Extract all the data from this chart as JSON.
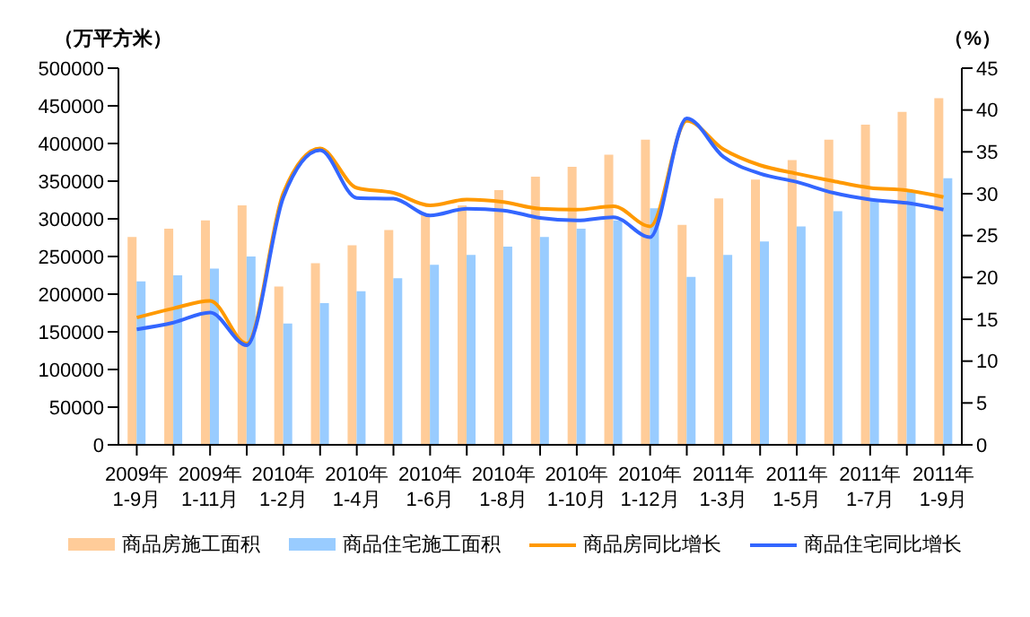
{
  "chart_data": {
    "type": "bar",
    "ylabel": "（万平方米）",
    "y2label": "（%）",
    "categories": [
      "2009年\n1-9月",
      null,
      "2009年\n1-11月",
      null,
      "2010年\n1-2月",
      null,
      "2010年\n1-4月",
      null,
      "2010年\n1-6月",
      null,
      "2010年\n1-8月",
      null,
      "2010年\n1-10月",
      null,
      "2010年\n1-12月",
      null,
      "2011年\n1-3月",
      null,
      "2011年\n1-5月",
      null,
      "2011年\n1-7月",
      null,
      "2011年\n1-9月"
    ],
    "series": [
      {
        "name": "商品房施工面积",
        "color": "#ffcc99",
        "values": [
          276000,
          287000,
          298000,
          318000,
          210000,
          241000,
          265000,
          285000,
          305000,
          318000,
          338000,
          356000,
          369000,
          385000,
          405000,
          292000,
          327000,
          352000,
          378000,
          405000,
          425000,
          442000,
          460000
        ]
      },
      {
        "name": "商品住宅施工面积",
        "color": "#99ccff",
        "values": [
          217000,
          225000,
          234000,
          250000,
          161000,
          188000,
          204000,
          221000,
          239000,
          252000,
          263000,
          276000,
          287000,
          298000,
          314000,
          223000,
          252000,
          270000,
          290000,
          310000,
          325000,
          336000,
          354000
        ]
      },
      {
        "name": "商品房同比增长",
        "type": "line",
        "axis": "y2",
        "color": "#ff9900",
        "values": [
          15.2,
          16.3,
          17.2,
          12.1,
          30.1,
          35.4,
          30.7,
          30.1,
          28.6,
          29.3,
          29.0,
          28.2,
          28.1,
          28.5,
          26.1,
          38.7,
          35.3,
          33.4,
          32.4,
          31.5,
          30.7,
          30.4,
          29.6
        ]
      },
      {
        "name": "商品住宅同比增长",
        "type": "line",
        "axis": "y2",
        "color": "#3366ff",
        "values": [
          13.8,
          14.6,
          15.8,
          11.9,
          29.6,
          35.2,
          29.5,
          29.4,
          27.4,
          28.2,
          28.0,
          27.1,
          26.8,
          27.2,
          24.8,
          39.0,
          34.4,
          32.4,
          31.4,
          30.1,
          29.3,
          28.9,
          28.1
        ]
      }
    ],
    "ylim": [
      0,
      500000
    ],
    "yticks": [
      0,
      50000,
      100000,
      150000,
      200000,
      250000,
      300000,
      350000,
      400000,
      450000,
      500000
    ],
    "y2lim": [
      0,
      45
    ],
    "y2ticks": [
      0,
      5,
      10,
      15,
      20,
      25,
      30,
      35,
      40,
      45
    ],
    "legend": "bottom",
    "marker": "none",
    "line_style": "solid"
  }
}
